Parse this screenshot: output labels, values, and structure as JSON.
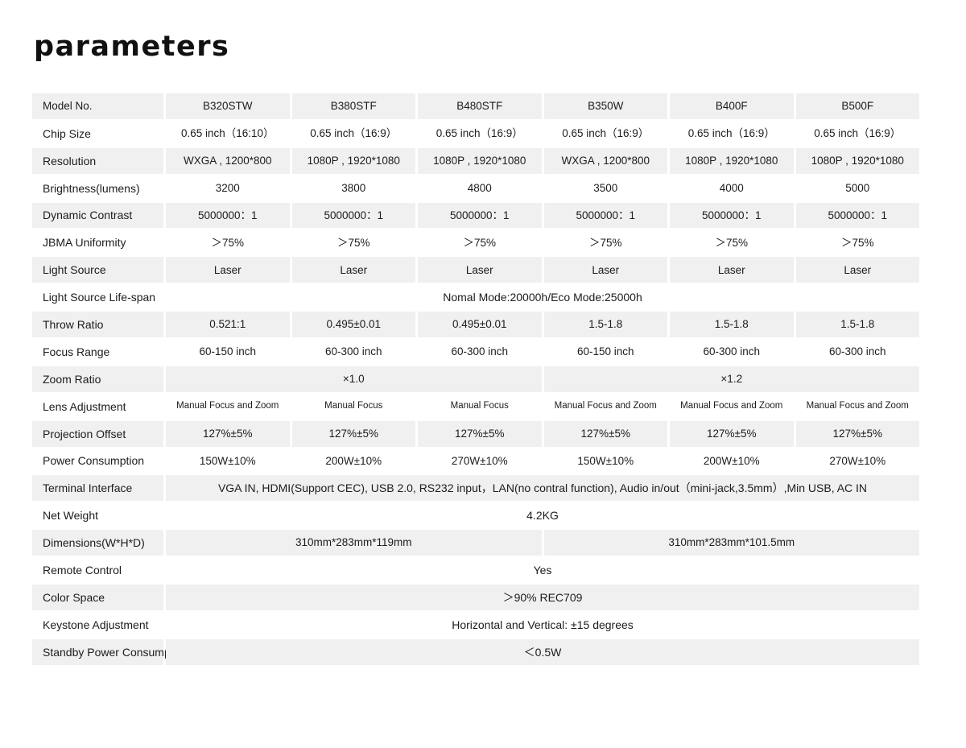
{
  "title": "parameters",
  "table": {
    "header": {
      "label": "Model No.",
      "models": [
        "B320STW",
        "B380STF",
        "B480STF",
        "B350W",
        "B400F",
        "B500F"
      ]
    },
    "rows": [
      {
        "label": "Chip Size",
        "type": "cells",
        "values": [
          "0.65 inch（16:10）",
          "0.65 inch（16:9）",
          "0.65 inch（16:9）",
          "0.65 inch（16:9）",
          "0.65 inch（16:9）",
          "0.65 inch（16:9）"
        ]
      },
      {
        "label": "Resolution",
        "type": "cells",
        "values": [
          "WXGA , 1200*800",
          "1080P , 1920*1080",
          "1080P , 1920*1080",
          "WXGA , 1200*800",
          "1080P , 1920*1080",
          "1080P , 1920*1080"
        ]
      },
      {
        "label": "Brightness(lumens)",
        "type": "cells",
        "values": [
          "3200",
          "3800",
          "4800",
          "3500",
          "4000",
          "5000"
        ]
      },
      {
        "label": "Dynamic Contrast",
        "type": "cells",
        "values": [
          "5000000：1",
          "5000000：1",
          "5000000：1",
          "5000000：1",
          "5000000：1",
          "5000000：1"
        ]
      },
      {
        "label": "JBMA Uniformity",
        "type": "cells",
        "values": [
          "＞75%",
          "＞75%",
          "＞75%",
          "＞75%",
          "＞75%",
          "＞75%"
        ]
      },
      {
        "label": "Light Source",
        "type": "cells",
        "values": [
          "Laser",
          "Laser",
          "Laser",
          "Laser",
          "Laser",
          "Laser"
        ]
      },
      {
        "label": "Light Source Life-span",
        "type": "full",
        "value": "Nomal Mode:20000h/Eco Mode:25000h"
      },
      {
        "label": "Throw Ratio",
        "type": "cells",
        "values": [
          "0.521:1",
          "0.495±0.01",
          "0.495±0.01",
          "1.5-1.8",
          "1.5-1.8",
          "1.5-1.8"
        ]
      },
      {
        "label": "Focus Range",
        "type": "cells",
        "values": [
          "60-150 inch",
          "60-300 inch",
          "60-300 inch",
          "60-150 inch",
          "60-300 inch",
          "60-300 inch"
        ]
      },
      {
        "label": "Zoom Ratio",
        "type": "split",
        "left": "×1.0",
        "right": "×1.2"
      },
      {
        "label": "Lens Adjustment",
        "type": "cells",
        "small": true,
        "values": [
          "Manual Focus and Zoom",
          "Manual Focus",
          "Manual Focus",
          "Manual Focus and Zoom",
          "Manual Focus and Zoom",
          "Manual Focus and Zoom"
        ]
      },
      {
        "label": "Projection Offset",
        "type": "cells",
        "values": [
          "127%±5%",
          "127%±5%",
          "127%±5%",
          "127%±5%",
          "127%±5%",
          "127%±5%"
        ]
      },
      {
        "label": "Power Consumption",
        "type": "cells",
        "values": [
          "150W±10%",
          "200W±10%",
          "270W±10%",
          "150W±10%",
          "200W±10%",
          "270W±10%"
        ]
      },
      {
        "label": "Terminal Interface",
        "type": "full",
        "value": "VGA IN, HDMI(Support CEC), USB 2.0, RS232 input，LAN(no contral function), Audio in/out（mini-jack,3.5mm）,Min USB, AC IN"
      },
      {
        "label": "Net Weight",
        "type": "full",
        "value": "4.2KG"
      },
      {
        "label": "Dimensions(W*H*D)",
        "type": "split",
        "left": "310mm*283mm*119mm",
        "right": "310mm*283mm*101.5mm"
      },
      {
        "label": "Remote Control",
        "type": "full",
        "value": "Yes"
      },
      {
        "label": "Color Space",
        "type": "full",
        "value": "＞90%  REC709"
      },
      {
        "label": "Keystone Adjustment",
        "type": "full",
        "value": "Horizontal and Vertical: ±15 degrees"
      },
      {
        "label": "Standby Power Consumption",
        "type": "full",
        "value": "＜0.5W"
      }
    ],
    "colors": {
      "shade": "#f0f0f0",
      "text": "#1c1c1c"
    }
  }
}
